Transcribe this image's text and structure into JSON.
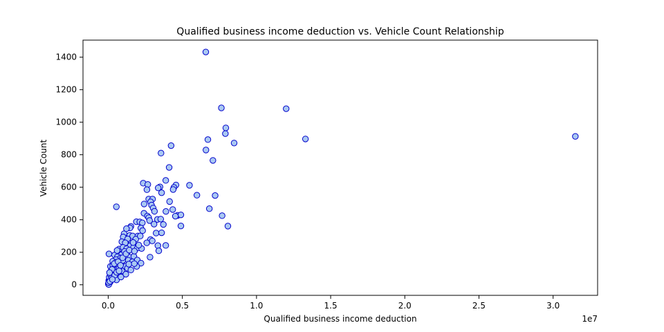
{
  "chart_data": {
    "type": "scatter",
    "title": "Qualified business income deduction vs. Vehicle Count Relationship",
    "xlabel": "Qualified business income deduction",
    "ylabel": "Vehicle Count",
    "x_scale_label": "1e7",
    "xlim": [
      -0.17,
      3.3
    ],
    "ylim": [
      -65,
      1505
    ],
    "x_unit_multiplier": 10000000,
    "x_ticks": [
      0.0,
      0.5,
      1.0,
      1.5,
      2.0,
      2.5,
      3.0
    ],
    "x_tick_labels": [
      "0.0",
      "0.5",
      "1.0",
      "1.5",
      "2.0",
      "2.5",
      "3.0"
    ],
    "y_ticks": [
      0,
      200,
      400,
      600,
      800,
      1000,
      1200,
      1400
    ],
    "y_tick_labels": [
      "0",
      "200",
      "400",
      "600",
      "800",
      "1000",
      "1200",
      "1400"
    ],
    "grid": false,
    "legend": "none",
    "marker_fill": "#a9c8f2",
    "marker_edge": "#0000cc",
    "series": [
      {
        "points": [
          [
            0.658,
            1432
          ],
          [
            0.763,
            1088
          ],
          [
            1.2,
            1083
          ],
          [
            0.793,
            965
          ],
          [
            0.79,
            930
          ],
          [
            1.33,
            897
          ],
          [
            3.15,
            913
          ],
          [
            0.672,
            893
          ],
          [
            0.849,
            872
          ],
          [
            0.424,
            856
          ],
          [
            0.659,
            829
          ],
          [
            0.356,
            810
          ],
          [
            0.706,
            765
          ],
          [
            0.411,
            722
          ],
          [
            0.388,
            642
          ],
          [
            0.236,
            625
          ],
          [
            0.267,
            617
          ],
          [
            0.457,
            614
          ],
          [
            0.548,
            612
          ],
          [
            0.349,
            602
          ],
          [
            0.337,
            596
          ],
          [
            0.443,
            599
          ],
          [
            0.438,
            586
          ],
          [
            0.261,
            585
          ],
          [
            0.36,
            566
          ],
          [
            0.598,
            551
          ],
          [
            0.721,
            549
          ],
          [
            0.273,
            527
          ],
          [
            0.299,
            527
          ],
          [
            0.414,
            512
          ],
          [
            0.286,
            510
          ],
          [
            0.242,
            497
          ],
          [
            0.292,
            490
          ],
          [
            0.303,
            472
          ],
          [
            0.682,
            468
          ],
          [
            0.435,
            463
          ],
          [
            0.389,
            451
          ],
          [
            0.312,
            452
          ],
          [
            0.241,
            440
          ],
          [
            0.264,
            423
          ],
          [
            0.273,
            413
          ],
          [
            0.469,
            427
          ],
          [
            0.49,
            430
          ],
          [
            0.453,
            422
          ],
          [
            0.768,
            425
          ],
          [
            0.332,
            402
          ],
          [
            0.354,
            404
          ],
          [
            0.279,
            395
          ],
          [
            0.19,
            388
          ],
          [
            0.213,
            387
          ],
          [
            0.23,
            381
          ],
          [
            0.309,
            373
          ],
          [
            0.372,
            371
          ],
          [
            0.49,
            362
          ],
          [
            0.807,
            361
          ],
          [
            0.153,
            359
          ],
          [
            0.147,
            350
          ],
          [
            0.22,
            349
          ],
          [
            0.232,
            333
          ],
          [
            0.323,
            318
          ],
          [
            0.36,
            320
          ],
          [
            0.107,
            314
          ],
          [
            0.145,
            304
          ],
          [
            0.165,
            300
          ],
          [
            0.2,
            300
          ],
          [
            0.101,
            294
          ],
          [
            0.131,
            282
          ],
          [
            0.186,
            281
          ],
          [
            0.216,
            300
          ],
          [
            0.285,
            278
          ],
          [
            0.297,
            270
          ],
          [
            0.092,
            265
          ],
          [
            0.115,
            258
          ],
          [
            0.157,
            258
          ],
          [
            0.26,
            258
          ],
          [
            0.335,
            241
          ],
          [
            0.388,
            242
          ],
          [
            0.148,
            240
          ],
          [
            0.17,
            229
          ],
          [
            0.074,
            220
          ],
          [
            0.1,
            230
          ],
          [
            0.124,
            222
          ],
          [
            0.196,
            225
          ],
          [
            0.225,
            223
          ],
          [
            0.341,
            209
          ],
          [
            0.005,
            190
          ],
          [
            0.043,
            183
          ],
          [
            0.09,
            185
          ],
          [
            0.126,
            193
          ],
          [
            0.062,
            172
          ],
          [
            0.083,
            165
          ],
          [
            0.145,
            170
          ],
          [
            0.173,
            175
          ],
          [
            0.282,
            170
          ],
          [
            0.052,
            155
          ],
          [
            0.112,
            159
          ],
          [
            0.135,
            151
          ],
          [
            0.163,
            141
          ],
          [
            0.196,
            152
          ],
          [
            0.03,
            145
          ],
          [
            0.052,
            138
          ],
          [
            0.079,
            124
          ],
          [
            0.104,
            117
          ],
          [
            0.221,
            133
          ],
          [
            0.015,
            113
          ],
          [
            0.04,
            104
          ],
          [
            0.068,
            108
          ],
          [
            0.13,
            102
          ],
          [
            0.192,
            113
          ],
          [
            0.02,
            86
          ],
          [
            0.046,
            81
          ],
          [
            0.091,
            86
          ],
          [
            0.153,
            91
          ],
          [
            0.018,
            66
          ],
          [
            0.06,
            63
          ],
          [
            0.119,
            65
          ],
          [
            0.033,
            44
          ],
          [
            0.056,
            30
          ],
          [
            0.086,
            48
          ],
          [
            0.004,
            26
          ],
          [
            0.013,
            17
          ],
          [
            0.02,
            28
          ],
          [
            0.001,
            7
          ],
          [
            0.002,
            3
          ],
          [
            0.007,
            10
          ],
          [
            0.055,
            480
          ],
          [
            0.004,
            2
          ],
          [
            0.01,
            35
          ],
          [
            0.025,
            52
          ],
          [
            0.036,
            69
          ],
          [
            0.049,
            92
          ],
          [
            0.072,
            100
          ],
          [
            0.088,
            133
          ],
          [
            0.098,
            150
          ],
          [
            0.11,
            205
          ],
          [
            0.06,
            211
          ],
          [
            0.031,
            120
          ],
          [
            0.007,
            47
          ],
          [
            0.016,
            60
          ],
          [
            0.026,
            94
          ],
          [
            0.041,
            130
          ],
          [
            0.067,
            142
          ],
          [
            0.083,
            119
          ],
          [
            0.097,
            166
          ],
          [
            0.139,
            127
          ],
          [
            0.176,
            130
          ],
          [
            0.12,
            191
          ],
          [
            0.142,
            213
          ],
          [
            0.177,
            207
          ],
          [
            0.206,
            244
          ],
          [
            0.123,
            345
          ],
          [
            0.168,
            260
          ],
          [
            0.009,
            75
          ],
          [
            0.022,
            40
          ],
          [
            0.044,
            59
          ],
          [
            0.057,
            77
          ],
          [
            0.073,
            85
          ],
          [
            0.003,
            14
          ],
          [
            0.012,
            21
          ],
          [
            0.028,
            33
          ]
        ]
      }
    ]
  }
}
